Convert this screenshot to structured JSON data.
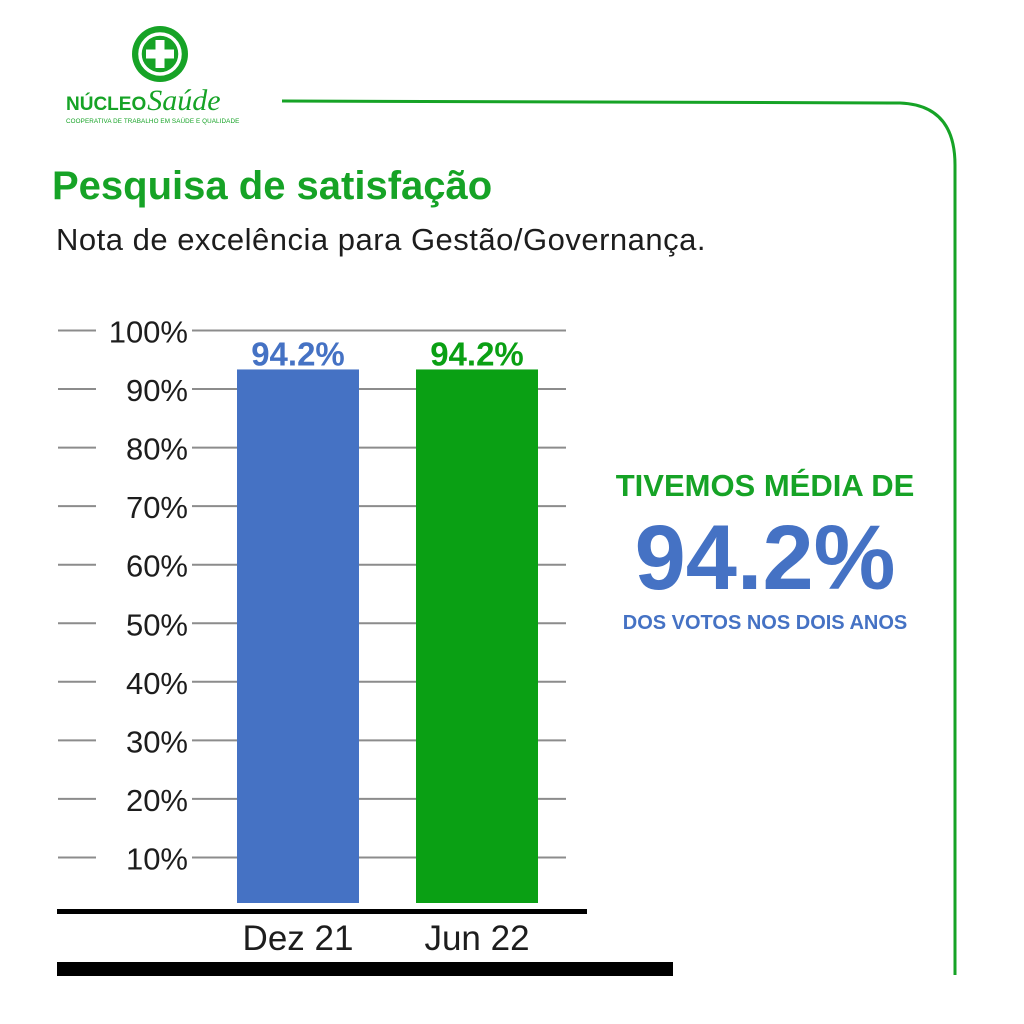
{
  "logo": {
    "name_part1": "NÚCLEO",
    "name_part2": "Saúde",
    "tagline": "COOPERATIVA DE TRABALHO EM SAÚDE E QUALIDADE"
  },
  "header": {
    "title": "Pesquisa de satisfação",
    "subtitle": "Nota de excelência para Gestão/Governança."
  },
  "colors": {
    "brand_green": "#16a326",
    "bar_blue": "#4572c4",
    "bar_green": "#0aa014",
    "text_dark": "#1d1d1d"
  },
  "chart_data": {
    "type": "bar",
    "categories": [
      "Dez 21",
      "Jun 22"
    ],
    "values": [
      94.2,
      94.2
    ],
    "data_labels": [
      "94.2%",
      "94.2%"
    ],
    "bar_colors": [
      "#4572c4",
      "#0aa014"
    ],
    "ylim": [
      0,
      100
    ],
    "yticks": [
      10,
      20,
      30,
      40,
      50,
      60,
      70,
      80,
      90,
      100
    ],
    "ytick_labels": [
      "10%",
      "20%",
      "30%",
      "40%",
      "50%",
      "60%",
      "70%",
      "80%",
      "90%",
      "100%"
    ],
    "grid": true,
    "title": "",
    "xlabel": "",
    "ylabel": ""
  },
  "callout": {
    "line1": "TIVEMOS MÉDIA DE",
    "value": "94.2%",
    "line3": "DOS VOTOS NOS DOIS ANOS"
  }
}
